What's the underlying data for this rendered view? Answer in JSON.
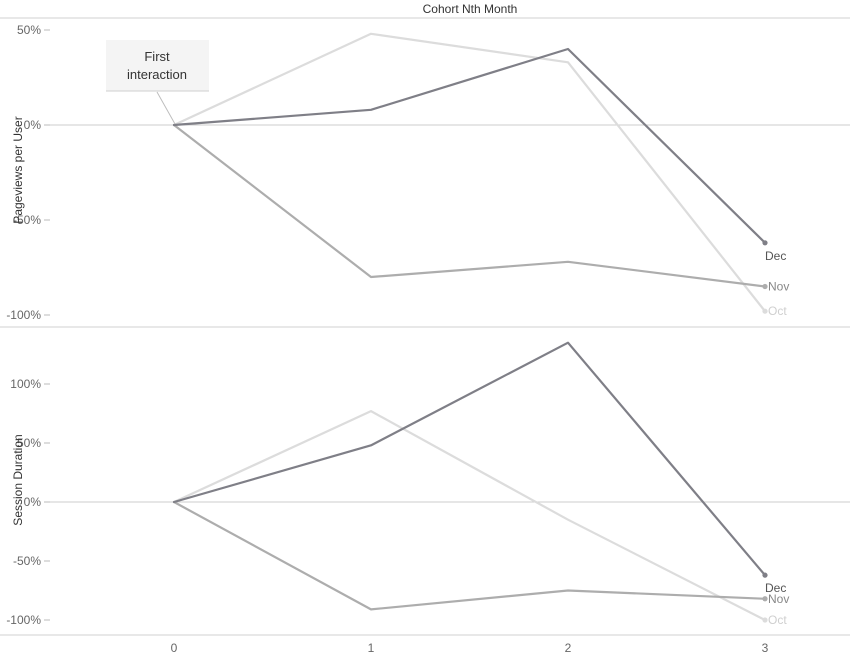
{
  "chart_data": {
    "type": "line",
    "title": "Cohort Nth Month",
    "x": [
      0,
      1,
      2,
      3
    ],
    "xlim": [
      -0.3,
      3.3
    ],
    "annotation": {
      "line1": "First",
      "line2": "interaction"
    },
    "colors": {
      "Dec": "#7f7f87",
      "Nov": "#adadad",
      "Oct": "#dcdcdc"
    },
    "panels": [
      {
        "ylabel": "Pageviews per User",
        "ylim": [
          -1.0,
          0.5
        ],
        "yticks": [
          0.5,
          0,
          -0.5,
          -1.0
        ],
        "ytick_labels": [
          "50%",
          "0%",
          "-50%",
          "-100%"
        ],
        "series": [
          {
            "name": "Oct",
            "values": [
              0,
              0.48,
              0.33,
              -0.98
            ]
          },
          {
            "name": "Nov",
            "values": [
              0,
              -0.8,
              -0.72,
              -0.85
            ]
          },
          {
            "name": "Dec",
            "values": [
              0,
              0.08,
              0.4,
              -0.62
            ]
          }
        ]
      },
      {
        "ylabel": "Session Duration",
        "ylim": [
          -1.0,
          1.3
        ],
        "yticks": [
          1.0,
          0.5,
          0,
          -0.5,
          -1.0
        ],
        "ytick_labels": [
          "100%",
          "50%",
          "0%",
          "-50%",
          "-100%"
        ],
        "series": [
          {
            "name": "Oct",
            "values": [
              0,
              0.77,
              -0.15,
              -1.0
            ]
          },
          {
            "name": "Nov",
            "values": [
              0,
              -0.91,
              -0.75,
              -0.82
            ]
          },
          {
            "name": "Dec",
            "values": [
              0,
              0.48,
              1.35,
              -0.62
            ]
          }
        ]
      }
    ]
  }
}
